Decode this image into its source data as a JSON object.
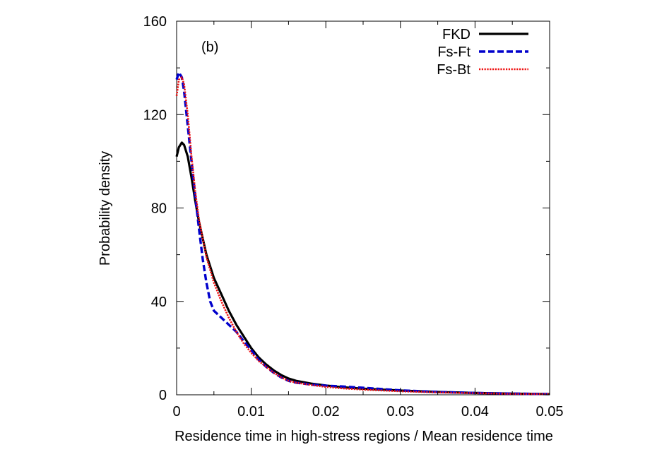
{
  "chart_data": {
    "type": "line",
    "annotation": "(b)",
    "xlabel": "Residence time in high-stress regions / Mean residence time",
    "ylabel": "Probability density",
    "xlim": [
      0,
      0.05
    ],
    "ylim": [
      0,
      160
    ],
    "x_ticks": [
      0,
      0.01,
      0.02,
      0.03,
      0.04,
      0.05
    ],
    "x_tick_labels": [
      "0",
      "0.01",
      "0.02",
      "0.03",
      "0.04",
      "0.05"
    ],
    "y_ticks": [
      0,
      40,
      80,
      120,
      160
    ],
    "y_tick_labels": [
      "0",
      "40",
      "80",
      "120",
      "160"
    ],
    "grid": false,
    "legend_position": "top-right",
    "series": [
      {
        "name": "FKD",
        "color": "#000000",
        "style": "solid",
        "x": [
          0,
          0.0003,
          0.0007,
          0.001,
          0.0015,
          0.002,
          0.0025,
          0.003,
          0.004,
          0.005,
          0.006,
          0.007,
          0.008,
          0.009,
          0.01,
          0.011,
          0.012,
          0.013,
          0.014,
          0.015,
          0.016,
          0.018,
          0.02,
          0.022,
          0.025,
          0.03,
          0.035,
          0.04,
          0.045,
          0.05
        ],
        "y": [
          102,
          106,
          108,
          107,
          102,
          93,
          83,
          74,
          60,
          50,
          43,
          36,
          30,
          25,
          20,
          16,
          13,
          10.5,
          8.5,
          7,
          6,
          4.8,
          4.0,
          3.3,
          2.6,
          1.8,
          1.2,
          0.8,
          0.5,
          0.3
        ]
      },
      {
        "name": "Fs-Ft",
        "color": "#0000cc",
        "style": "dashed",
        "x": [
          0,
          0.0003,
          0.0007,
          0.001,
          0.0015,
          0.002,
          0.0025,
          0.003,
          0.0035,
          0.004,
          0.0045,
          0.005,
          0.006,
          0.007,
          0.008,
          0.009,
          0.01,
          0.011,
          0.012,
          0.013,
          0.014,
          0.015,
          0.016,
          0.018,
          0.02,
          0.022,
          0.025,
          0.03,
          0.035,
          0.04,
          0.045,
          0.05
        ],
        "y": [
          135,
          138,
          136,
          130,
          115,
          100,
          85,
          71,
          58,
          48,
          40,
          36,
          33,
          30,
          27,
          23,
          19,
          15,
          12,
          9.5,
          7.5,
          6,
          5.2,
          4.4,
          3.9,
          3.6,
          3.0,
          1.9,
          1.2,
          0.8,
          0.5,
          0.3
        ]
      },
      {
        "name": "Fs-Bt",
        "color": "#ee1111",
        "style": "dotted",
        "x": [
          0,
          0.0003,
          0.0007,
          0.001,
          0.0015,
          0.002,
          0.0025,
          0.003,
          0.004,
          0.005,
          0.006,
          0.007,
          0.008,
          0.009,
          0.01,
          0.011,
          0.012,
          0.013,
          0.014,
          0.015,
          0.016,
          0.018,
          0.02,
          0.022,
          0.025,
          0.03,
          0.035,
          0.04,
          0.045,
          0.05
        ],
        "y": [
          128,
          135,
          136,
          133,
          120,
          102,
          87,
          75,
          59,
          48,
          40,
          33,
          27,
          22,
          18,
          14.5,
          12,
          9.5,
          7.5,
          6,
          5.2,
          4.2,
          3.4,
          2.8,
          2.2,
          1.5,
          1.0,
          0.7,
          0.4,
          0.3
        ]
      }
    ]
  }
}
